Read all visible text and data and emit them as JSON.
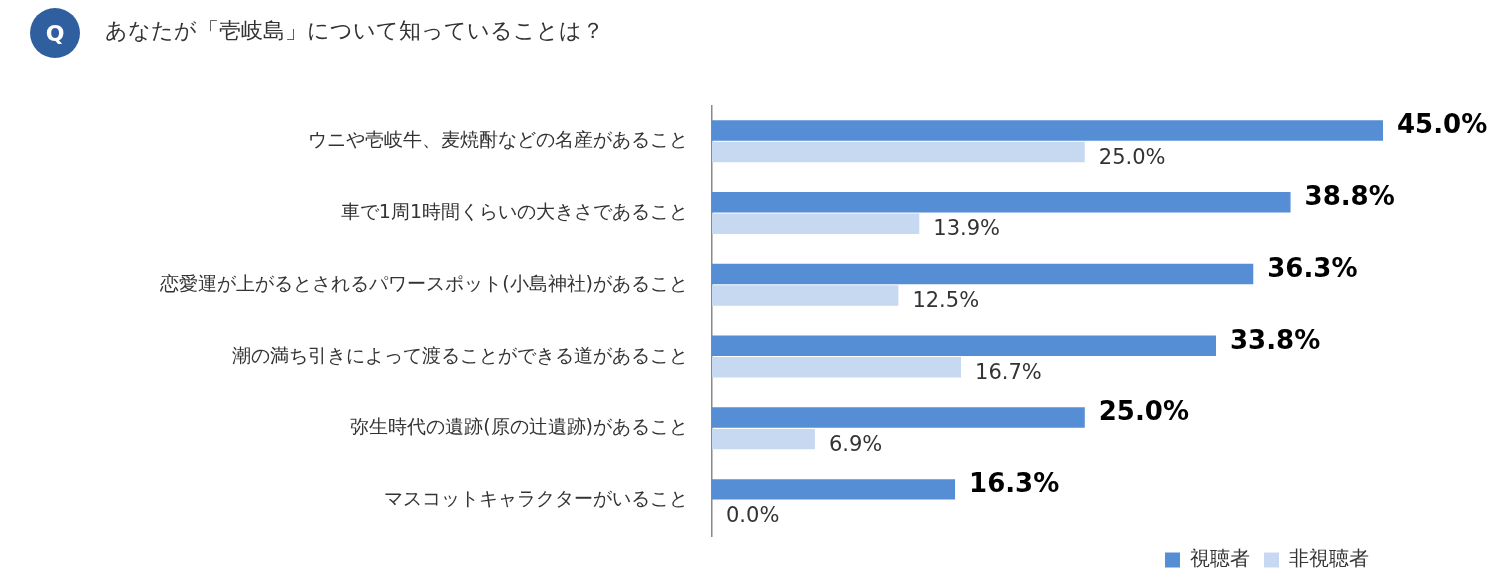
{
  "chart_data": {
    "type": "bar",
    "orientation": "horizontal",
    "title": "あなたが「壱岐島」について知っていることは？",
    "annotations": [
      "Q"
    ],
    "categories": [
      "ウニや壱岐牛、麦焼酎などの名産があること",
      "車で1周1時間くらいの大きさであること",
      "恋愛運が上がるとされるパワースポット(小島神社)があること",
      "潮の満ち引きによって渡ることができる道があること",
      "弥生時代の遺跡(原の辻遺跡)があること",
      "マスコットキャラクターがいること"
    ],
    "grid": false,
    "legend": "bottom right",
    "tick_labels": "y",
    "series": [
      {
        "name": "視聴者",
        "color": "#558ed5",
        "values": [
          45.0,
          38.8,
          36.3,
          33.8,
          25.0,
          16.3
        ],
        "value_labels": [
          "45.0%",
          "38.8%",
          "36.3%",
          "33.8%",
          "25.0%",
          "16.3%"
        ]
      },
      {
        "name": "非視聴者",
        "color": "#c6d9f1",
        "values": [
          25.0,
          13.9,
          12.5,
          16.7,
          6.9,
          0.0
        ],
        "value_labels": [
          "25.0%",
          "13.9%",
          "12.5%",
          "16.7%",
          "6.9%",
          "0.0%"
        ]
      }
    ]
  }
}
